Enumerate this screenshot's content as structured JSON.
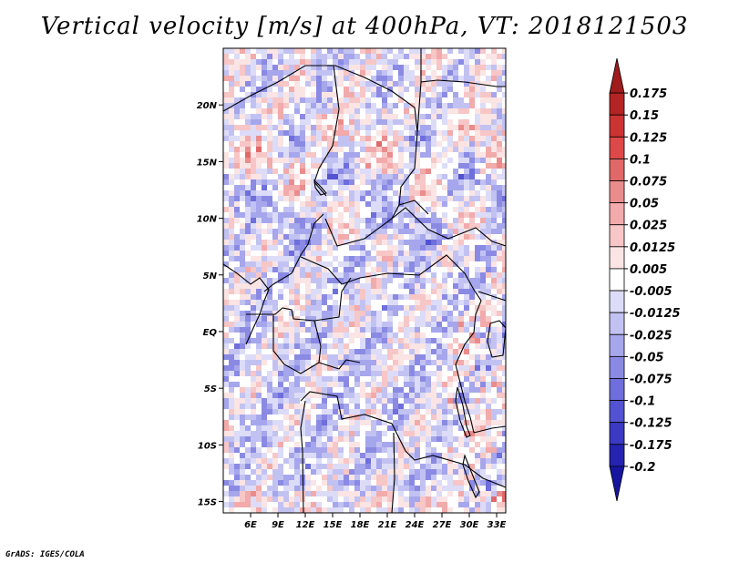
{
  "title": "Vertical velocity [m/s] at 400hPa, VT: 2018121503",
  "footer": "GrADS: IGES/COLA",
  "map": {
    "lon_range": [
      3,
      34
    ],
    "lat_range": [
      -16,
      25
    ],
    "lon_ticks": [
      "6E",
      "9E",
      "12E",
      "15E",
      "18E",
      "21E",
      "24E",
      "27E",
      "30E",
      "33E"
    ],
    "lat_ticks": [
      "20N",
      "15N",
      "10N",
      "5N",
      "EQ",
      "5S",
      "10S",
      "15S"
    ]
  },
  "colorbar": {
    "labels": [
      "0.175",
      "0.15",
      "0.125",
      "0.1",
      "0.075",
      "0.05",
      "0.025",
      "0.0125",
      "0.005",
      "-0.005",
      "-0.0125",
      "-0.025",
      "-0.05",
      "-0.075",
      "-0.1",
      "-0.125",
      "-0.175",
      "-0.2"
    ],
    "colors": [
      "#a01c1c",
      "#b52424",
      "#cc3333",
      "#dd4848",
      "#e06868",
      "#ea8c8c",
      "#f2aaaa",
      "#f7c6c6",
      "#fbe4e4",
      "#ffffff",
      "#dcdcf8",
      "#c2c2f2",
      "#a6a6ec",
      "#8a8ae4",
      "#6e6edc",
      "#5252d2",
      "#3a3ac4",
      "#2424b0",
      "#1616a0"
    ]
  }
}
